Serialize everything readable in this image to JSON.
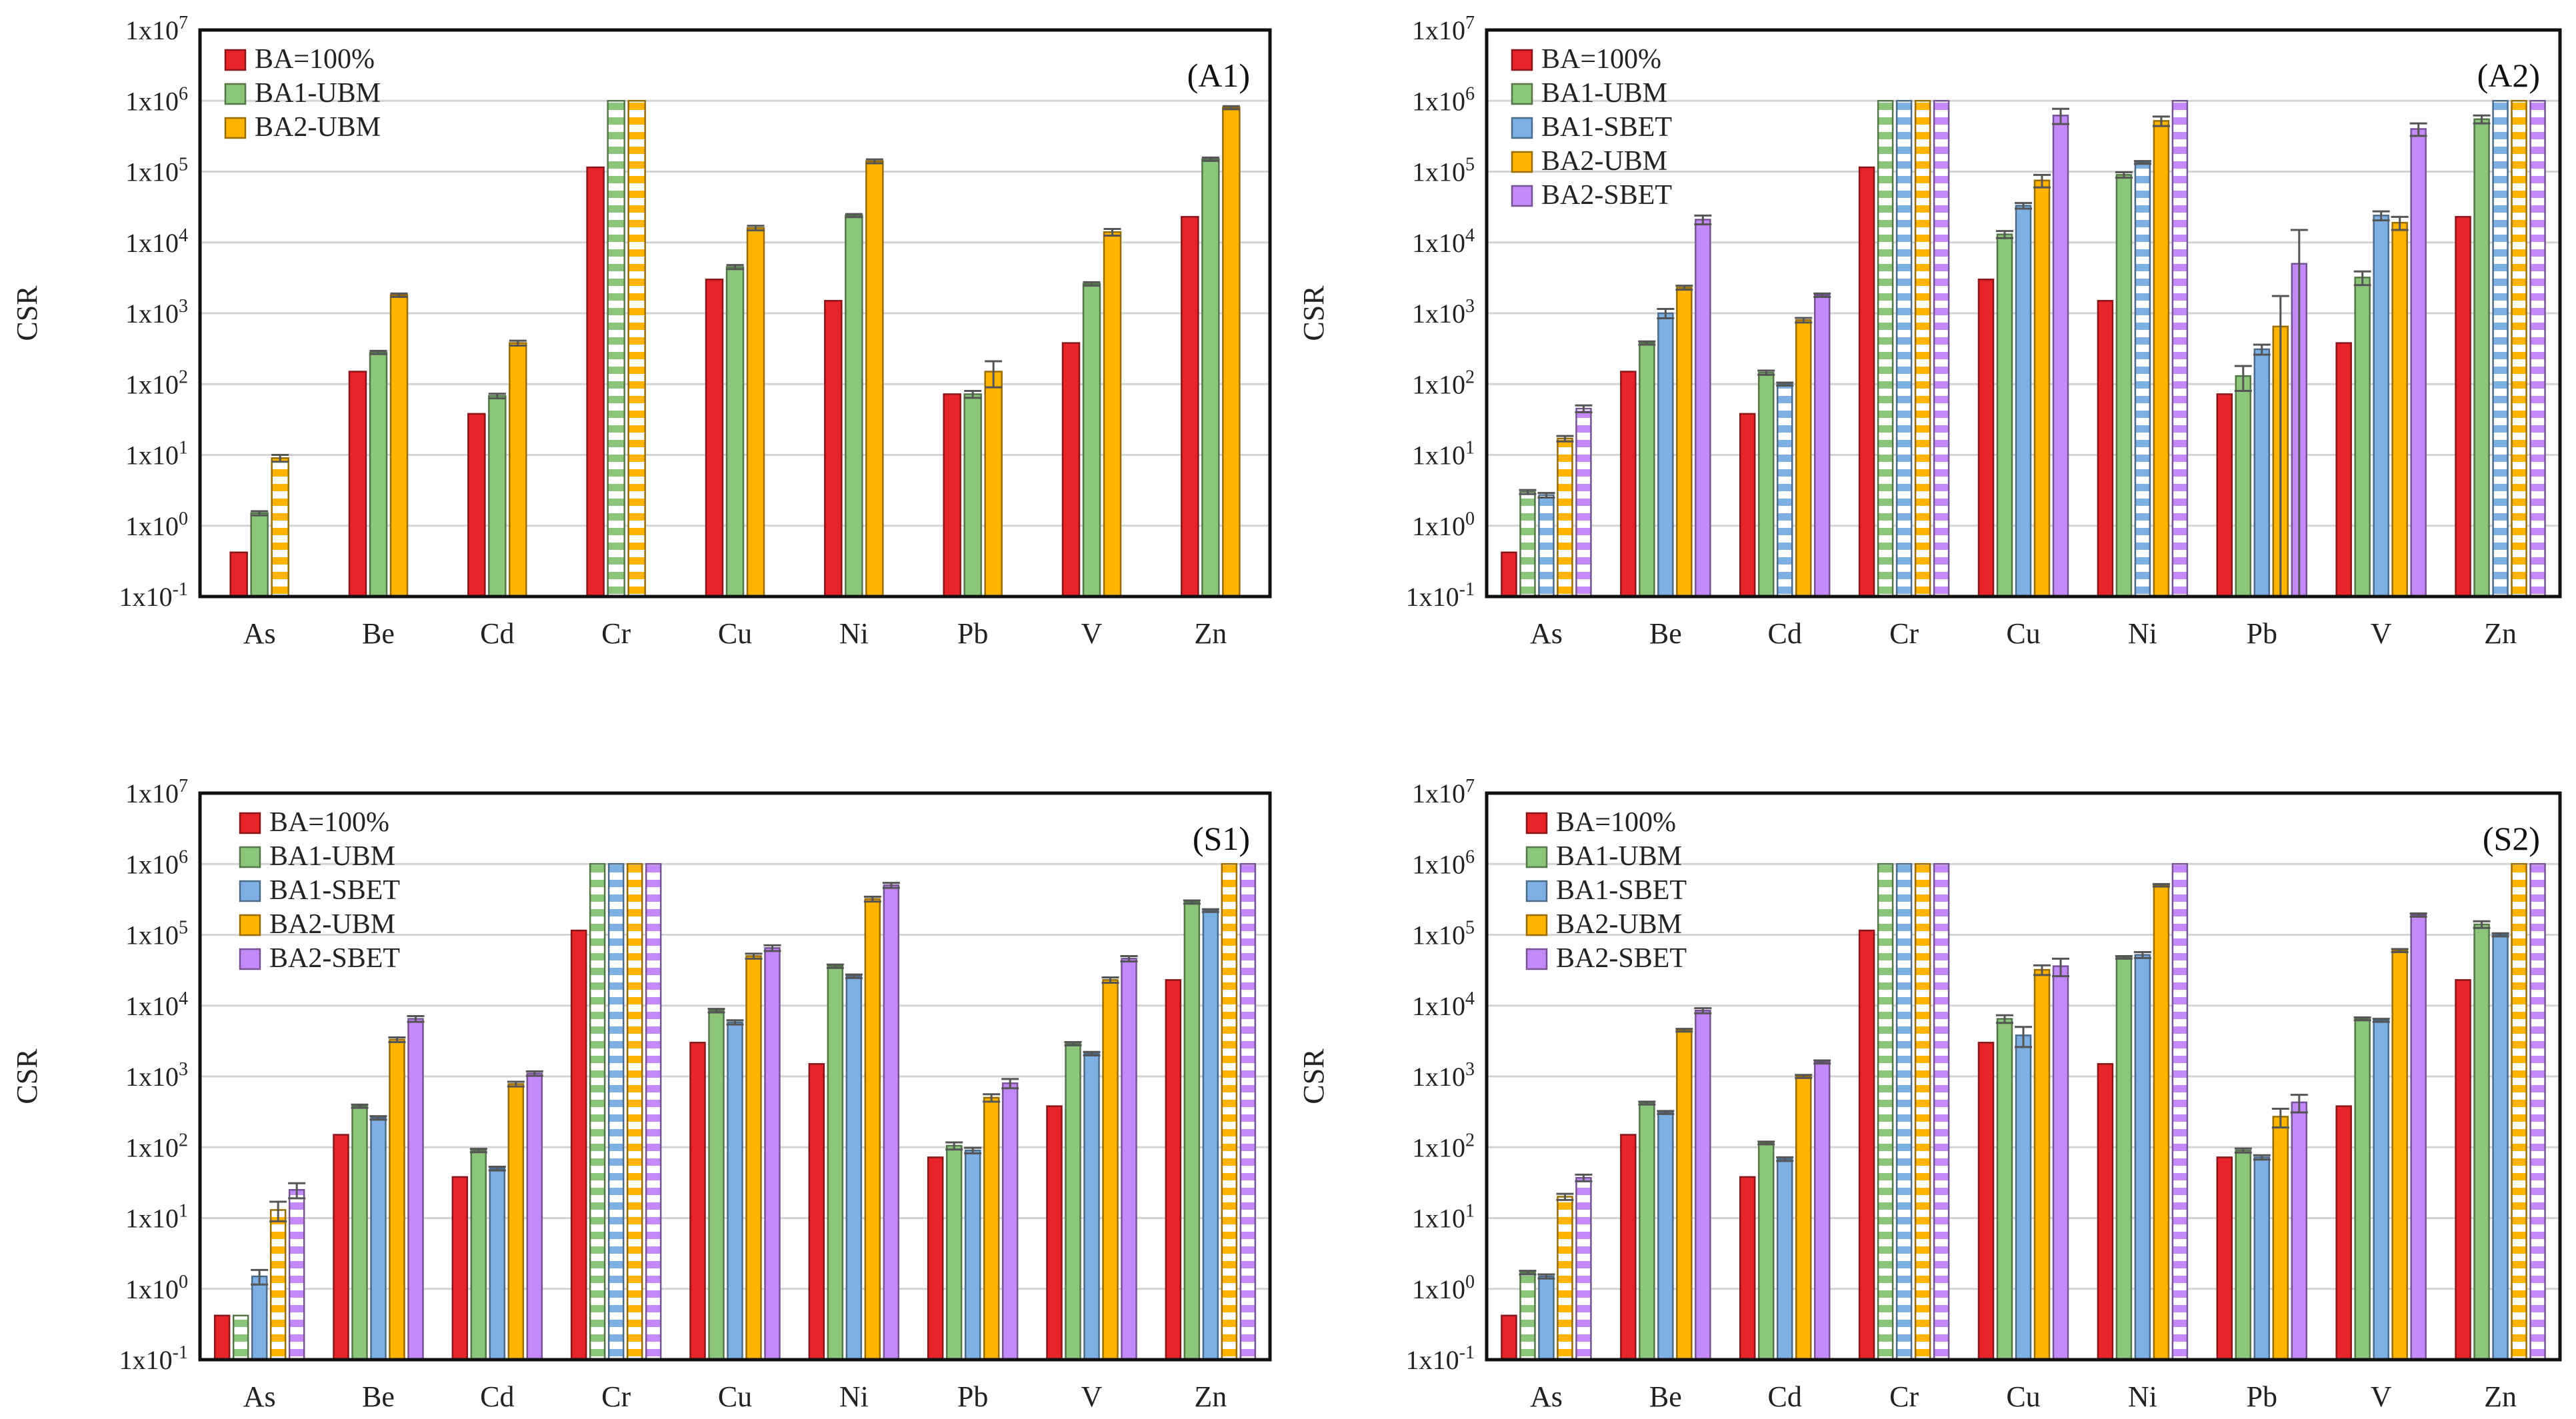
{
  "figure": {
    "ylabel": "CSR",
    "ytick_labels": [
      {
        "base": "1x10",
        "exp": "-1"
      },
      {
        "base": "1x10",
        "exp": "0"
      },
      {
        "base": "1x10",
        "exp": "1"
      },
      {
        "base": "1x10",
        "exp": "2"
      },
      {
        "base": "1x10",
        "exp": "3"
      },
      {
        "base": "1x10",
        "exp": "4"
      },
      {
        "base": "1x10",
        "exp": "5"
      },
      {
        "base": "1x10",
        "exp": "6"
      },
      {
        "base": "1x10",
        "exp": "7"
      }
    ]
  },
  "chart_data": [
    {
      "type": "bar",
      "panel_label": "(A1)",
      "yscale": "log",
      "ylim": [
        0.1,
        10000000
      ],
      "ylabel": "CSR",
      "grid": "horizontal major gridlines",
      "legend_position": "top-left",
      "categories": [
        "As",
        "Be",
        "Cd",
        "Cr",
        "Cu",
        "Ni",
        "Pb",
        "V",
        "Zn"
      ],
      "series": [
        {
          "name": "BA=100%",
          "color": "#e8242b",
          "values": [
            0.42,
            150,
            38,
            115000,
            3000,
            1500,
            72,
            380,
            23000
          ],
          "errors": [
            0,
            0,
            0,
            0,
            0,
            0,
            0,
            0,
            0
          ],
          "hatched": [
            false,
            false,
            false,
            false,
            false,
            false,
            false,
            false,
            false
          ]
        },
        {
          "name": "BA1-UBM",
          "color": "#8cc67b",
          "values": [
            1.5,
            280,
            68,
            1000000,
            4500,
            24000,
            72,
            2600,
            150000
          ],
          "errors": [
            0.1,
            15,
            5,
            0,
            300,
            1200,
            8,
            150,
            8000
          ],
          "hatched": [
            false,
            false,
            false,
            true,
            false,
            false,
            false,
            false,
            false
          ]
        },
        {
          "name": "BA2-UBM",
          "color": "#ffb400",
          "values": [
            9,
            1800,
            380,
            1000000,
            16000,
            140000,
            150,
            14000,
            800000
          ],
          "errors": [
            1,
            100,
            30,
            0,
            1200,
            9000,
            60,
            1500,
            40000
          ],
          "hatched": [
            true,
            false,
            false,
            true,
            false,
            false,
            false,
            false,
            false
          ]
        }
      ]
    },
    {
      "type": "bar",
      "panel_label": "(A2)",
      "yscale": "log",
      "ylim": [
        0.1,
        10000000
      ],
      "ylabel": "CSR",
      "grid": "horizontal major gridlines",
      "legend_position": "top-left",
      "categories": [
        "As",
        "Be",
        "Cd",
        "Cr",
        "Cu",
        "Ni",
        "Pb",
        "V",
        "Zn"
      ],
      "series": [
        {
          "name": "BA=100%",
          "color": "#e8242b",
          "values": [
            0.42,
            150,
            38,
            115000,
            3000,
            1500,
            72,
            380,
            23000
          ],
          "errors": [
            0,
            0,
            0,
            0,
            0,
            0,
            0,
            0,
            0
          ],
          "hatched": [
            false,
            false,
            false,
            false,
            false,
            false,
            false,
            false,
            false
          ]
        },
        {
          "name": "BA1-UBM",
          "color": "#8cc67b",
          "values": [
            3,
            380,
            145,
            1000000,
            13000,
            90000,
            130,
            3200,
            550000
          ],
          "errors": [
            0.2,
            20,
            10,
            0,
            1500,
            8000,
            50,
            700,
            70000
          ],
          "hatched": [
            true,
            false,
            false,
            true,
            false,
            false,
            false,
            false,
            false
          ]
        },
        {
          "name": "BA1-SBET",
          "color": "#7fb0e4",
          "values": [
            2.7,
            1000,
            100,
            1000000,
            33000,
            135000,
            310,
            24000,
            1000000
          ],
          "errors": [
            0.2,
            150,
            5,
            0,
            3000,
            6000,
            50,
            3500,
            0
          ],
          "hatched": [
            true,
            false,
            true,
            true,
            false,
            true,
            false,
            false,
            true
          ]
        },
        {
          "name": "BA2-UBM",
          "color": "#ffb400",
          "values": [
            17,
            2300,
            800,
            1000000,
            75000,
            520000,
            650,
            19000,
            1000000
          ],
          "errors": [
            1.5,
            150,
            60,
            0,
            15000,
            80000,
            1100,
            4000,
            0
          ],
          "hatched": [
            true,
            false,
            false,
            true,
            false,
            false,
            false,
            false,
            true
          ]
        },
        {
          "name": "BA2-SBET",
          "color": "#c58af9",
          "values": [
            45,
            21000,
            1800,
            1000000,
            620000,
            1000000,
            5000,
            400000,
            1000000
          ],
          "errors": [
            5,
            3000,
            100,
            0,
            150000,
            0,
            10000,
            80000,
            0
          ],
          "hatched": [
            true,
            false,
            false,
            true,
            false,
            true,
            false,
            false,
            true
          ]
        }
      ]
    },
    {
      "type": "bar",
      "panel_label": "(S1)",
      "yscale": "log",
      "ylim": [
        0.1,
        10000000
      ],
      "ylabel": "CSR",
      "grid": "horizontal major gridlines",
      "legend_position": "top-left",
      "categories": [
        "As",
        "Be",
        "Cd",
        "Cr",
        "Cu",
        "Ni",
        "Pb",
        "V",
        "Zn"
      ],
      "series": [
        {
          "name": "BA=100%",
          "color": "#e8242b",
          "values": [
            0.42,
            150,
            38,
            115000,
            3000,
            1500,
            72,
            380,
            23000
          ],
          "errors": [
            0,
            0,
            0,
            0,
            0,
            0,
            0,
            0,
            0
          ],
          "hatched": [
            false,
            false,
            false,
            false,
            false,
            false,
            false,
            false,
            false
          ]
        },
        {
          "name": "BA1-UBM",
          "color": "#8cc67b",
          "values": [
            0.42,
            380,
            90,
            1000000,
            8500,
            36000,
            105,
            2900,
            290000
          ],
          "errors": [
            0,
            20,
            5,
            0,
            500,
            2000,
            12,
            150,
            15000
          ],
          "hatched": [
            true,
            false,
            false,
            true,
            false,
            false,
            false,
            false,
            false
          ]
        },
        {
          "name": "BA1-SBET",
          "color": "#7fb0e4",
          "values": [
            1.5,
            260,
            50,
            1000000,
            5800,
            26000,
            90,
            2100,
            220000
          ],
          "errors": [
            0.35,
            15,
            3,
            0,
            400,
            1500,
            8,
            120,
            10000
          ],
          "hatched": [
            false,
            false,
            false,
            true,
            false,
            false,
            false,
            false,
            false
          ]
        },
        {
          "name": "BA2-UBM",
          "color": "#ffb400",
          "values": [
            13,
            3300,
            780,
            1000000,
            50000,
            320000,
            500,
            23000,
            1000000
          ],
          "errors": [
            4,
            250,
            60,
            0,
            4000,
            25000,
            60,
            2000,
            0
          ],
          "hatched": [
            true,
            false,
            false,
            true,
            false,
            false,
            false,
            false,
            true
          ]
        },
        {
          "name": "BA2-SBET",
          "color": "#c58af9",
          "values": [
            25,
            6500,
            1100,
            1000000,
            65000,
            500000,
            800,
            46000,
            1000000
          ],
          "errors": [
            6,
            600,
            80,
            0,
            6000,
            40000,
            120,
            4000,
            0
          ],
          "hatched": [
            true,
            false,
            false,
            true,
            false,
            false,
            false,
            false,
            true
          ]
        }
      ]
    },
    {
      "type": "bar",
      "panel_label": "(S2)",
      "yscale": "log",
      "ylim": [
        0.1,
        10000000
      ],
      "ylabel": "CSR",
      "grid": "horizontal major gridlines",
      "legend_position": "top-left",
      "categories": [
        "As",
        "Be",
        "Cd",
        "Cr",
        "Cu",
        "Ni",
        "Pb",
        "V",
        "Zn"
      ],
      "series": [
        {
          "name": "BA=100%",
          "color": "#e8242b",
          "values": [
            0.42,
            150,
            38,
            115000,
            3000,
            1500,
            72,
            380,
            23000
          ],
          "errors": [
            0,
            0,
            0,
            0,
            0,
            0,
            0,
            0,
            0
          ],
          "hatched": [
            false,
            false,
            false,
            false,
            false,
            false,
            false,
            false,
            false
          ]
        },
        {
          "name": "BA1-UBM",
          "color": "#8cc67b",
          "values": [
            1.7,
            420,
            115,
            1000000,
            6500,
            48000,
            90,
            6500,
            140000
          ],
          "errors": [
            0.1,
            20,
            5,
            0,
            800,
            2000,
            6,
            300,
            15000
          ],
          "hatched": [
            true,
            false,
            false,
            true,
            false,
            false,
            false,
            false,
            false
          ]
        },
        {
          "name": "BA1-SBET",
          "color": "#7fb0e4",
          "values": [
            1.5,
            310,
            68,
            1000000,
            3800,
            52000,
            72,
            6200,
            100000
          ],
          "errors": [
            0.1,
            15,
            4,
            0,
            1200,
            5000,
            5,
            300,
            5000
          ],
          "hatched": [
            false,
            false,
            false,
            true,
            false,
            false,
            false,
            false,
            false
          ]
        },
        {
          "name": "BA2-UBM",
          "color": "#ffb400",
          "values": [
            20,
            4500,
            1000,
            1000000,
            32000,
            500000,
            270,
            60000,
            1000000
          ],
          "errors": [
            2,
            200,
            50,
            0,
            5000,
            20000,
            80,
            3000,
            0
          ],
          "hatched": [
            true,
            false,
            false,
            true,
            false,
            false,
            false,
            false,
            true
          ]
        },
        {
          "name": "BA2-SBET",
          "color": "#c58af9",
          "values": [
            37,
            8500,
            1600,
            1000000,
            36000,
            1000000,
            430,
            190000,
            1000000
          ],
          "errors": [
            4,
            700,
            80,
            0,
            10000,
            0,
            120,
            10000,
            0
          ],
          "hatched": [
            true,
            false,
            false,
            true,
            false,
            true,
            false,
            false,
            true
          ]
        }
      ]
    }
  ]
}
